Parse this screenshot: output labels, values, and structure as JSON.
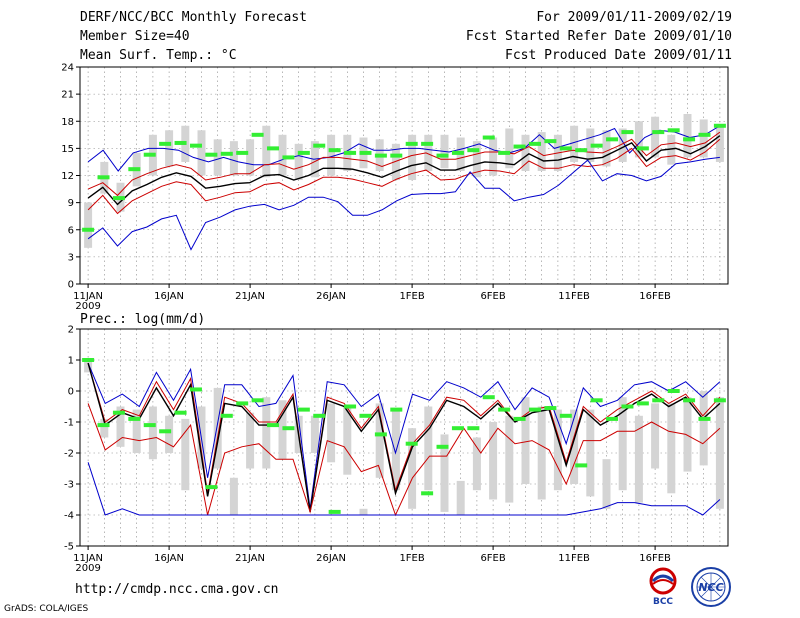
{
  "header": {
    "line1_left": "DERF/NCC/BCC Monthly Forecast",
    "line2_left": "Member Size=40",
    "line3_left": "Mean Surf. Temp.: °C",
    "line1_right": "For 2009/01/11-2009/02/19",
    "line2_right": "Fcst Started Refer Date 2009/01/10",
    "line3_right": "Fcst Produced Date 2009/01/11"
  },
  "footer": {
    "url": "http://cmdp.ncc.cma.gov.cn",
    "credit": "GrADS: COLA/IGES",
    "logo1_text": "BCC",
    "logo2_text": "NCC"
  },
  "colors": {
    "box": "#d4d4d4",
    "mean": "#000000",
    "spread": "#cc0000",
    "extreme": "#0000cc",
    "obs": "#33ee33",
    "grid": "#888888"
  },
  "chart_data": [
    {
      "type": "box-line",
      "title": "",
      "ylabel": "Mean Surf. Temp.: °C",
      "ylim": [
        0,
        24
      ],
      "yticks": [
        0,
        3,
        6,
        9,
        12,
        15,
        18,
        21,
        24
      ],
      "x_tick_days": [
        1,
        6,
        11,
        16,
        21,
        26,
        31,
        36
      ],
      "x_tick_labels": [
        "11JAN",
        "16JAN",
        "21JAN",
        "26JAN",
        "1FEB",
        "6FEB",
        "11FEB",
        "16FEB"
      ],
      "x_year_label": "2009",
      "n_days": 40,
      "grid": true,
      "series": [
        {
          "name": "max",
          "values": [
            13.5,
            14.8,
            12.5,
            14.5,
            15,
            15,
            14.8,
            14,
            13.5,
            14,
            13.5,
            13.2,
            13.2,
            13.8,
            14.2,
            13.8,
            14,
            14.5,
            15.5,
            14.8,
            14.8,
            15,
            15,
            14.8,
            14.6,
            15,
            15.5,
            14.8,
            14.5,
            15,
            16.5,
            15,
            15.5,
            16,
            16.5,
            17.2,
            14.5,
            16.2,
            17,
            16.8,
            16.2,
            16.5,
            17.5
          ]
        },
        {
          "name": "upper",
          "values": [
            10.5,
            11.2,
            9.8,
            11.5,
            12.2,
            12.8,
            13.2,
            12.8,
            11.5,
            11.8,
            12.2,
            12.2,
            13.2,
            13.3,
            12.7,
            13.2,
            14,
            14,
            13.8,
            13.6,
            13,
            13.6,
            14.2,
            14.5,
            13.8,
            13.8,
            14.2,
            14.6,
            14.6,
            14.4,
            15.2,
            14.2,
            14.5,
            14.8,
            14.6,
            14.5,
            15.2,
            16,
            14.2,
            15.4,
            15.6,
            15.2,
            15.6,
            16.8
          ]
        },
        {
          "name": "mean",
          "values": [
            9.5,
            10.7,
            8.8,
            10.3,
            11,
            11.8,
            12.3,
            11.9,
            10.6,
            10.8,
            11.1,
            11.2,
            12,
            12.1,
            11.5,
            12,
            12.8,
            12.8,
            12.7,
            12.3,
            11.8,
            12.5,
            13.1,
            13.4,
            12.6,
            12.6,
            13.1,
            13.5,
            13.4,
            13.2,
            14.4,
            13.6,
            13.7,
            14.1,
            13.8,
            14,
            14.8,
            15.6,
            13.6,
            14.8,
            15,
            14.4,
            15.2,
            16.4
          ]
        },
        {
          "name": "lower",
          "values": [
            8.2,
            9.8,
            7.8,
            9.2,
            10,
            10.8,
            11.3,
            11,
            9.2,
            9.6,
            10.1,
            10.2,
            11,
            11.2,
            10.4,
            11,
            11.8,
            11.8,
            11.6,
            11.2,
            10.8,
            11.6,
            12.2,
            12.6,
            11.5,
            11.6,
            12.2,
            12.6,
            12.5,
            12.2,
            13.6,
            12.8,
            12.8,
            13.2,
            13,
            13.2,
            13.9,
            15,
            13,
            14,
            14.2,
            13.7,
            14.6,
            16
          ]
        },
        {
          "name": "min",
          "values": [
            5,
            6.2,
            4.2,
            5.8,
            6.3,
            7.2,
            7.6,
            3.8,
            6.8,
            7.4,
            8.2,
            8.6,
            8.8,
            8.2,
            8.7,
            9.6,
            9.6,
            9.1,
            7.6,
            7.6,
            8.2,
            9.2,
            9.9,
            10,
            10,
            10.2,
            12.4,
            10.6,
            10.6,
            9.2,
            9.6,
            9.9,
            10.9,
            12.3,
            13.7,
            11.4,
            12.2,
            12,
            11.4,
            11.9,
            13.3,
            13.5,
            13.8,
            14
          ]
        }
      ],
      "obs": [
        6,
        11.8,
        9.5,
        12.7,
        14.3,
        15.5,
        15.6,
        15.3,
        14.3,
        14.4,
        14.5,
        16.5,
        15,
        14,
        14.5,
        15.3,
        14.8,
        14.5,
        14.5,
        14.2,
        14.2,
        15.5,
        15.5,
        14.2,
        14.5,
        14.8,
        16.2,
        14.5,
        15.2,
        15.5,
        15.8,
        15,
        14.8,
        15.3,
        16,
        16.8,
        15,
        16.8,
        17,
        16,
        16.5,
        17.5
      ],
      "boxes": [
        [
          4,
          9
        ],
        [
          10,
          13.5
        ],
        [
          8,
          11.2
        ],
        [
          10.8,
          14.5
        ],
        [
          12,
          16.5
        ],
        [
          13,
          17
        ],
        [
          13.5,
          17.5
        ],
        [
          12,
          17
        ],
        [
          12,
          16
        ],
        [
          12,
          15.8
        ],
        [
          12,
          16
        ],
        [
          11.8,
          17.5
        ],
        [
          12,
          16.5
        ],
        [
          11.5,
          15.5
        ],
        [
          11.8,
          15.8
        ],
        [
          12,
          16.5
        ],
        [
          12.5,
          16.5
        ],
        [
          12.8,
          16.2
        ],
        [
          12.5,
          16
        ],
        [
          11.5,
          15.5
        ],
        [
          11.5,
          16.5
        ],
        [
          12.5,
          16.5
        ],
        [
          12.8,
          16.5
        ],
        [
          12.5,
          16.2
        ],
        [
          11.8,
          15.8
        ],
        [
          12,
          16.2
        ],
        [
          12.8,
          17.2
        ],
        [
          12.5,
          16.5
        ],
        [
          12.5,
          16.8
        ],
        [
          12.5,
          16.5
        ],
        [
          13.5,
          17.5
        ],
        [
          13.5,
          17.2
        ],
        [
          13,
          17
        ],
        [
          13.5,
          17.2
        ],
        [
          14,
          18
        ],
        [
          14,
          18.5
        ],
        [
          13.2,
          16.5
        ],
        [
          14,
          18.8
        ],
        [
          14,
          18.2
        ],
        [
          13.5,
          17.5
        ],
        [
          14,
          17.8
        ],
        [
          14.2,
          18.5
        ],
        [
          15.5,
          20.5
        ]
      ]
    },
    {
      "type": "box-line",
      "title": "Prec.: log(mm/d)",
      "ylim": [
        -5,
        2
      ],
      "yticks": [
        -5,
        -4,
        -3,
        -2,
        -1,
        0,
        1,
        2
      ],
      "x_tick_days": [
        1,
        6,
        11,
        16,
        21,
        26,
        31,
        36
      ],
      "x_tick_labels": [
        "11JAN",
        "16JAN",
        "21JAN",
        "26JAN",
        "1FEB",
        "6FEB",
        "11FEB",
        "16FEB"
      ],
      "x_year_label": "2009",
      "n_days": 40,
      "grid": true,
      "series": [
        {
          "name": "max",
          "values": [
            0.9,
            -0.4,
            -0.1,
            -0.5,
            0.6,
            -0.3,
            0.7,
            -2.8,
            0.2,
            0.2,
            -0.5,
            -0.4,
            0.5,
            -3.8,
            0.3,
            0.2,
            -0.5,
            -0.1,
            -2,
            -0.1,
            -0.3,
            0.3,
            0.1,
            -0.2,
            0.3,
            -0.6,
            0.1,
            -0.2,
            -1.7,
            0.1,
            -0.5,
            -0.3,
            0.2,
            0.3,
            0,
            0.3,
            -0.2,
            0.3
          ]
        },
        {
          "name": "upper",
          "values": [
            0.9,
            -1,
            -0.6,
            -0.8,
            0.3,
            -0.6,
            0.4,
            -3.3,
            -0.2,
            -0.4,
            -1,
            -1,
            -0.1,
            -3.9,
            -0.2,
            -0.4,
            -1.2,
            -0.5,
            -3.2,
            -1.7,
            -1.1,
            -0.2,
            -0.3,
            -0.8,
            -0.3,
            -1,
            -0.6,
            -0.5,
            -2.3,
            -0.5,
            -1,
            -0.6,
            -0.3,
            0,
            -0.4,
            -0.1,
            -0.8,
            -0.2
          ]
        },
        {
          "name": "mean",
          "values": [
            0.9,
            -1.1,
            -0.7,
            -0.9,
            0.1,
            -0.8,
            0.2,
            -3.4,
            -0.4,
            -0.5,
            -1.1,
            -1.1,
            -0.2,
            -3.9,
            -0.3,
            -0.5,
            -1.3,
            -0.6,
            -3.3,
            -1.8,
            -1.2,
            -0.3,
            -0.5,
            -0.9,
            -0.4,
            -1,
            -0.7,
            -0.6,
            -2.4,
            -0.6,
            -1.1,
            -0.8,
            -0.4,
            -0.1,
            -0.5,
            -0.2,
            -0.9,
            -0.4
          ]
        },
        {
          "name": "lower",
          "values": [
            -0.4,
            -1.9,
            -1.5,
            -1.6,
            -1.5,
            -1.8,
            -1.1,
            -4,
            -2,
            -1.8,
            -1.7,
            -2.2,
            -2.2,
            -3.9,
            -1.6,
            -1.8,
            -2.6,
            -2.4,
            -4,
            -2.8,
            -2.1,
            -2.1,
            -1.2,
            -2,
            -1.2,
            -1.7,
            -1.6,
            -1.9,
            -3,
            -1.6,
            -1.6,
            -1.3,
            -1.3,
            -1,
            -1.3,
            -1.4,
            -1.7,
            -1.2
          ]
        },
        {
          "name": "min",
          "values": [
            -2.3,
            -4,
            -3.8,
            -4,
            -4,
            -4,
            -4,
            -4,
            -4,
            -4,
            -4,
            -4,
            -4,
            -4,
            -4,
            -4,
            -4,
            -4,
            -4,
            -4,
            -4,
            -4,
            -4,
            -4,
            -4,
            -4,
            -4,
            -4,
            -4,
            -3.9,
            -3.8,
            -3.6,
            -3.6,
            -3.7,
            -3.7,
            -3.7,
            -4,
            -3.5
          ]
        }
      ],
      "obs": [
        1,
        -1.1,
        -0.7,
        -0.9,
        -1.1,
        -1.3,
        -0.7,
        0.05,
        -3.1,
        -0.8,
        -0.4,
        -0.3,
        -1.1,
        -1.2,
        -0.6,
        -0.8,
        -3.9,
        -0.5,
        -0.8,
        -1.4,
        -0.6,
        -1.7,
        -3.3,
        -1.8,
        -1.2,
        -1.2,
        -0.2,
        -0.6,
        -0.9,
        -0.6,
        -0.55,
        -0.8,
        -2.4,
        -0.3,
        -0.9,
        -0.5,
        -0.4,
        -0.3,
        0,
        -0.3,
        -0.9,
        -0.3
      ],
      "boxes": [
        [
          0.6,
          1
        ],
        [
          -1.5,
          -0.9
        ],
        [
          -1.8,
          -0.5
        ],
        [
          -2,
          -0.6
        ],
        [
          -2.2,
          -0.5
        ],
        [
          -2,
          -0.8
        ],
        [
          -3.2,
          -0.9
        ],
        [
          -2.5,
          -0.5
        ],
        [
          -2.5,
          0.1
        ],
        [
          -4,
          -2.8
        ],
        [
          -2.5,
          -0.7
        ],
        [
          -2.5,
          -0.2
        ],
        [
          -2.2,
          -0.3
        ],
        [
          -2,
          -0.8
        ],
        [
          -2,
          -0.8
        ],
        [
          -2.3,
          -0.4
        ],
        [
          -2.7,
          -0.5
        ],
        [
          -4,
          -3.8
        ],
        [
          -2.8,
          -0.4
        ],
        [
          -3.2,
          -0.6
        ],
        [
          -3.8,
          -1.2
        ],
        [
          -3.2,
          -0.5
        ],
        [
          -3.9,
          -1.4
        ],
        [
          -4,
          -2.9
        ],
        [
          -3.2,
          -1.5
        ],
        [
          -3.5,
          -1
        ],
        [
          -3.6,
          -0.8
        ],
        [
          -3,
          -0.2
        ],
        [
          -3.5,
          -0.5
        ],
        [
          -3.2,
          -0.6
        ],
        [
          -3,
          -0.6
        ],
        [
          -3.4,
          -0.6
        ],
        [
          -3.8,
          -2.2
        ],
        [
          -3.2,
          -0.2
        ],
        [
          -3.6,
          -0.8
        ],
        [
          -2.5,
          -0.4
        ],
        [
          -3.3,
          -0.4
        ],
        [
          -2.6,
          -0.2
        ],
        [
          -2.4,
          0
        ],
        [
          -3.8,
          -0.2
        ],
        [
          -2.3,
          -0.7
        ],
        [
          -2.2,
          0.1
        ]
      ]
    }
  ]
}
